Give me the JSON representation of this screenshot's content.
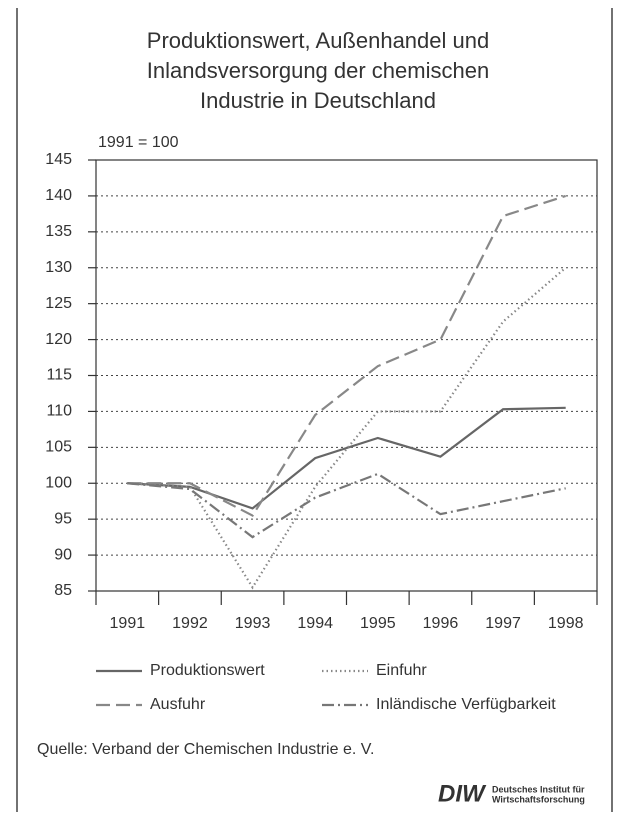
{
  "chart_data": {
    "type": "line",
    "title": [
      "Produktionswert, Außenhandel und",
      "Inlandsversorgung der chemischen",
      "Industrie in Deutschland"
    ],
    "y_label": "1991 = 100",
    "categories": [
      "1991",
      "1992",
      "1993",
      "1994",
      "1995",
      "1996",
      "1997",
      "1998"
    ],
    "series": [
      {
        "name": "Produktionswert",
        "color": "#666666",
        "style": "solid",
        "values": [
          100,
          99.5,
          96.5,
          103.5,
          106.3,
          103.7,
          110.3,
          110.5
        ]
      },
      {
        "name": "Einfuhr",
        "color": "#888888",
        "style": "dotted",
        "values": [
          100,
          99.5,
          85.5,
          99.5,
          110,
          110,
          122.5,
          130
        ]
      },
      {
        "name": "Ausfuhr",
        "color": "#888888",
        "style": "dashed",
        "values": [
          100,
          100,
          95.5,
          109.5,
          116.3,
          120,
          137.2,
          140
        ]
      },
      {
        "name": "Inländische Verfügbarkeit",
        "color": "#777777",
        "style": "dashdot",
        "values": [
          100,
          99.2,
          92.5,
          98,
          101.3,
          95.7,
          97.5,
          99.3
        ]
      }
    ],
    "ylim": [
      85,
      145
    ],
    "yticks": [
      85,
      90,
      95,
      100,
      105,
      110,
      115,
      120,
      125,
      130,
      135,
      140,
      145
    ],
    "grid": true,
    "source": "Quelle: Verband der Chemischen Industrie e. V.",
    "logo": {
      "mark": "DIW",
      "lines": [
        "Deutsches Institut für",
        "Wirtschaftsforschung"
      ]
    }
  }
}
